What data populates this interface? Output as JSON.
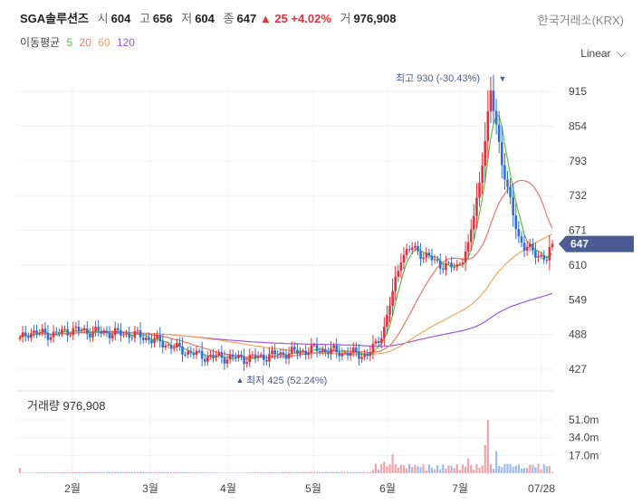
{
  "header": {
    "name": "SGA솔루션즈",
    "open_label": "시",
    "open": "604",
    "high_label": "고",
    "high": "656",
    "low_label": "저",
    "low": "604",
    "close_label": "종",
    "close": "647",
    "change": "25",
    "change_pct": "+4.02%",
    "volume_label": "거",
    "volume": "976,908",
    "exchange": "한국거래소(KRX)"
  },
  "ma_legend": {
    "label": "이동평균",
    "p5": "5",
    "p20": "20",
    "p60": "60",
    "p120": "120"
  },
  "scale_label": "Linear",
  "colors": {
    "up": "#e0323c",
    "down": "#2f6fd6",
    "ma5": "#5cbf4a",
    "ma20": "#e8766a",
    "ma60": "#f2a65a",
    "ma120": "#9b59d6",
    "badge": "#4b5b93"
  },
  "chart_data": {
    "type": "candlestick",
    "price_axis": {
      "ticks": [
        "915",
        "854",
        "793",
        "732",
        "671",
        "610",
        "549",
        "488",
        "427"
      ],
      "ylim": [
        400,
        950
      ]
    },
    "current_price_badge": "647",
    "max_label": "최고 930 (-30.43%)",
    "min_label": "최저 425 (52.24%)",
    "x_ticks": [
      "2월",
      "3월",
      "4월",
      "5월",
      "6월",
      "7월",
      "07/28"
    ],
    "volume_title": "거래량 976,908",
    "volume_ticks": [
      "51.0m",
      "34.0m",
      "17.0m"
    ],
    "keypoints": [
      [
        0,
        478
      ],
      [
        3,
        492
      ],
      [
        12,
        488
      ],
      [
        18,
        496
      ],
      [
        28,
        492
      ],
      [
        40,
        488
      ],
      [
        48,
        478
      ],
      [
        58,
        460
      ],
      [
        65,
        450
      ],
      [
        72,
        448
      ],
      [
        80,
        446
      ],
      [
        88,
        450
      ],
      [
        95,
        455
      ],
      [
        100,
        458
      ],
      [
        106,
        462
      ],
      [
        112,
        458
      ],
      [
        118,
        455
      ],
      [
        124,
        452
      ],
      [
        127,
        470
      ],
      [
        130,
        500
      ],
      [
        133,
        560
      ],
      [
        136,
        625
      ],
      [
        140,
        640
      ],
      [
        145,
        625
      ],
      [
        150,
        612
      ],
      [
        153,
        606
      ],
      [
        156,
        608
      ],
      [
        160,
        640
      ],
      [
        162,
        700
      ],
      [
        164,
        755
      ],
      [
        166,
        830
      ],
      [
        168,
        910
      ],
      [
        170,
        860
      ],
      [
        172,
        790
      ],
      [
        174,
        740
      ],
      [
        176,
        700
      ],
      [
        178,
        660
      ],
      [
        180,
        640
      ],
      [
        183,
        635
      ],
      [
        186,
        625
      ],
      [
        188,
        618
      ],
      [
        190,
        647
      ]
    ],
    "volume_spikes": [
      [
        0,
        5
      ],
      [
        126,
        3
      ],
      [
        130,
        11
      ],
      [
        133,
        18
      ],
      [
        136,
        8
      ],
      [
        140,
        6
      ],
      [
        148,
        4
      ],
      [
        160,
        14
      ],
      [
        166,
        27
      ],
      [
        167,
        51
      ],
      [
        170,
        21
      ],
      [
        174,
        9
      ],
      [
        180,
        5
      ],
      [
        190,
        1
      ]
    ]
  }
}
